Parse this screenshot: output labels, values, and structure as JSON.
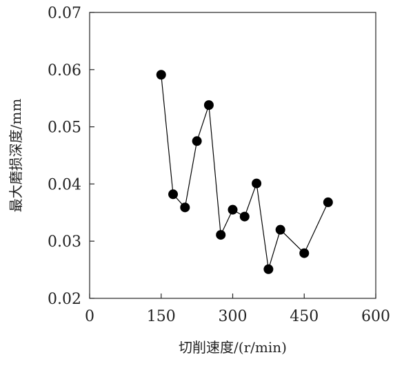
{
  "chart_data": {
    "type": "line",
    "title": "",
    "xlabel": "切削速度/(r/min)",
    "ylabel": "最大磨损深度/mm",
    "xlim": [
      0,
      600
    ],
    "ylim": [
      0.02,
      0.07
    ],
    "xticks": [
      0,
      150,
      300,
      450,
      600
    ],
    "yticks": [
      0.02,
      0.03,
      0.04,
      0.05,
      0.06,
      0.07
    ],
    "xtick_labels": [
      "0",
      "150",
      "300",
      "450",
      "600"
    ],
    "ytick_labels": [
      "0.02",
      "0.03",
      "0.04",
      "0.05",
      "0.06",
      "0.07"
    ],
    "grid": false,
    "legend": "none",
    "series": [
      {
        "x": [
          150,
          175,
          200,
          225,
          250,
          275,
          300,
          325,
          350,
          375,
          400,
          450,
          500
        ],
        "y": [
          0.0591,
          0.0382,
          0.0359,
          0.0475,
          0.0538,
          0.0311,
          0.0355,
          0.0343,
          0.0401,
          0.0251,
          0.032,
          0.0279,
          0.0368
        ],
        "color": "#000000",
        "marker": "circle"
      }
    ]
  }
}
